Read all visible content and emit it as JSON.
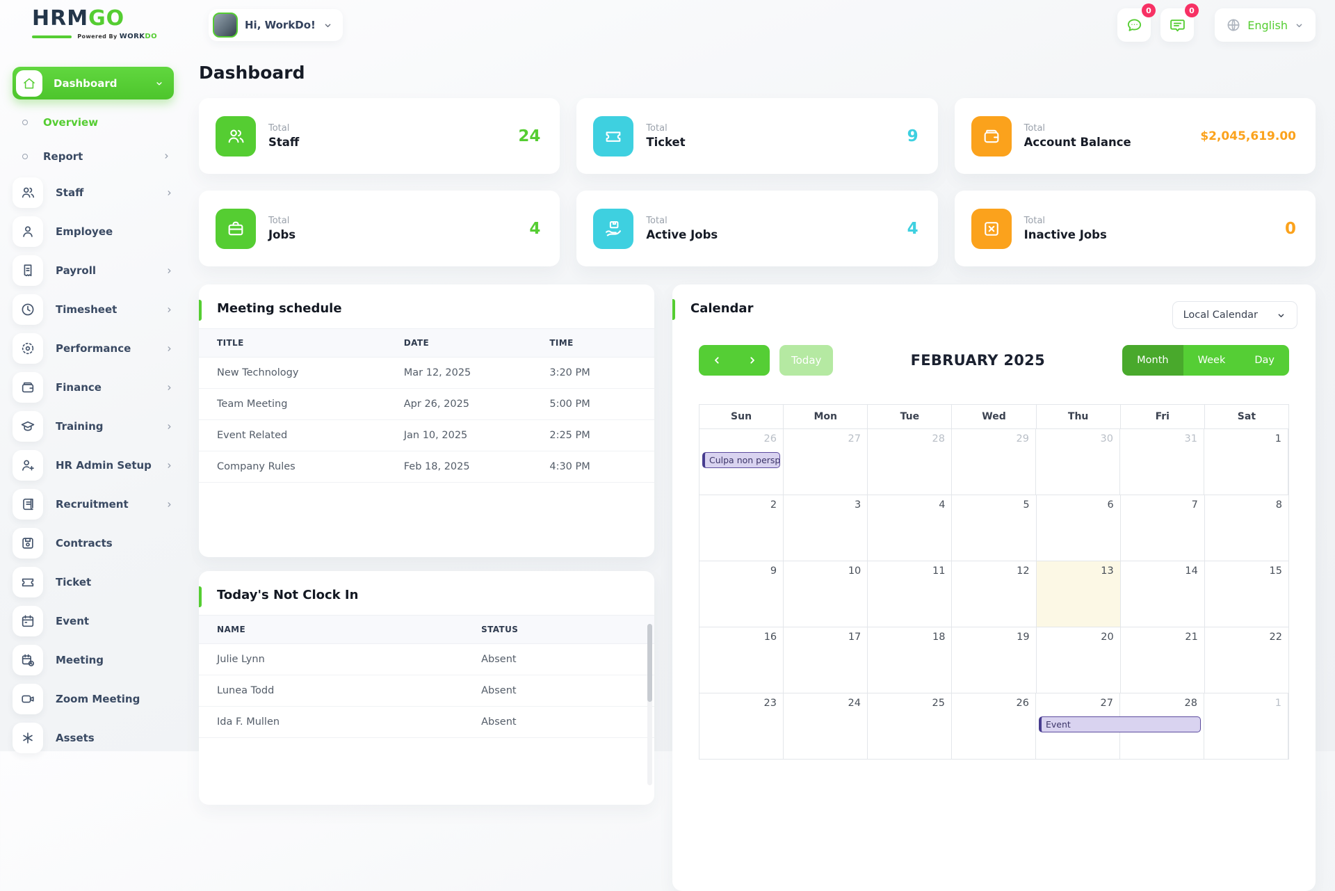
{
  "brand": {
    "name_primary": "HRM",
    "name_secondary": "GO",
    "tagline_prefix": "Powered By",
    "tagline_word1": "WORK",
    "tagline_word2": "DO"
  },
  "header": {
    "greeting": "Hi, WorkDo!",
    "messages_badge": "0",
    "notifications_badge": "0",
    "language": "English"
  },
  "sidebar": {
    "items": [
      {
        "label": "Dashboard",
        "icon": "home-icon",
        "active": true,
        "chevron": "down"
      },
      {
        "label": "Overview",
        "type": "sub",
        "active": true
      },
      {
        "label": "Report",
        "type": "sub",
        "chevron": "right"
      },
      {
        "label": "Staff",
        "icon": "users-icon",
        "chevron": "right"
      },
      {
        "label": "Employee",
        "icon": "user-icon"
      },
      {
        "label": "Payroll",
        "icon": "receipt-icon",
        "chevron": "right"
      },
      {
        "label": "Timesheet",
        "icon": "clock-icon",
        "chevron": "right"
      },
      {
        "label": "Performance",
        "icon": "target-icon",
        "chevron": "right"
      },
      {
        "label": "Finance",
        "icon": "wallet-icon",
        "chevron": "right"
      },
      {
        "label": "Training",
        "icon": "graduation-cap-icon",
        "chevron": "right"
      },
      {
        "label": "HR Admin Setup",
        "icon": "user-plus-icon",
        "chevron": "right"
      },
      {
        "label": "Recruitment",
        "icon": "scroll-icon",
        "chevron": "right"
      },
      {
        "label": "Contracts",
        "icon": "floppy-icon"
      },
      {
        "label": "Ticket",
        "icon": "ticket-icon"
      },
      {
        "label": "Event",
        "icon": "calendar-icon"
      },
      {
        "label": "Meeting",
        "icon": "calendar-clock-icon"
      },
      {
        "label": "Zoom Meeting",
        "icon": "video-camera-icon"
      },
      {
        "label": "Assets",
        "icon": "asterisk-icon"
      }
    ]
  },
  "page": {
    "title": "Dashboard"
  },
  "stat_cards": [
    {
      "label_top": "Total",
      "label": "Staff",
      "value": "24",
      "color": "#55cd32",
      "icon": "users-icon"
    },
    {
      "label_top": "Total",
      "label": "Ticket",
      "value": "9",
      "color": "#3ed0e0",
      "icon": "ticket-icon"
    },
    {
      "label_top": "Total",
      "label": "Account Balance",
      "value": "$2,045,619.00",
      "color": "#fba21c",
      "icon": "wallet-icon"
    },
    {
      "label_top": "Total",
      "label": "Jobs",
      "value": "4",
      "color": "#55cd32",
      "icon": "briefcase-icon"
    },
    {
      "label_top": "Total",
      "label": "Active Jobs",
      "value": "4",
      "color": "#3ed0e0",
      "icon": "hand-box-icon"
    },
    {
      "label_top": "Total",
      "label": "Inactive Jobs",
      "value": "0",
      "color": "#fba21c",
      "icon": "box-x-icon"
    }
  ],
  "meeting_schedule": {
    "title": "Meeting schedule",
    "headers": [
      "TITLE",
      "DATE",
      "TIME"
    ],
    "rows": [
      [
        "New Technology",
        "Mar 12, 2025",
        "3:20 PM"
      ],
      [
        "Team Meeting",
        "Apr 26, 2025",
        "5:00 PM"
      ],
      [
        "Event Related",
        "Jan 10, 2025",
        "2:25 PM"
      ],
      [
        "Company Rules",
        "Feb 18, 2025",
        "4:30 PM"
      ]
    ]
  },
  "not_clock_in": {
    "title": "Today's Not Clock In",
    "headers": [
      "NAME",
      "STATUS"
    ],
    "rows": [
      [
        "Julie Lynn",
        "Absent"
      ],
      [
        "Lunea Todd",
        "Absent"
      ],
      [
        "Ida F. Mullen",
        "Absent"
      ]
    ]
  },
  "calendar": {
    "title": "Calendar",
    "source": "Local Calendar",
    "toolbar": {
      "today": "Today",
      "month_title": "FEBRUARY 2025",
      "views": [
        "Month",
        "Week",
        "Day"
      ],
      "active_view": "Month"
    },
    "weekdays": [
      "Sun",
      "Mon",
      "Tue",
      "Wed",
      "Thu",
      "Fri",
      "Sat"
    ],
    "weeks": [
      {
        "days": [
          {
            "n": "26",
            "muted": true
          },
          {
            "n": "27",
            "muted": true
          },
          {
            "n": "28",
            "muted": true
          },
          {
            "n": "29",
            "muted": true
          },
          {
            "n": "30",
            "muted": true
          },
          {
            "n": "31",
            "muted": true
          },
          {
            "n": "1"
          }
        ],
        "events": [
          {
            "label": "Culpa non persp",
            "col": 0,
            "span": 1
          }
        ]
      },
      {
        "days": [
          {
            "n": "2"
          },
          {
            "n": "3"
          },
          {
            "n": "4"
          },
          {
            "n": "5"
          },
          {
            "n": "6"
          },
          {
            "n": "7"
          },
          {
            "n": "8"
          }
        ]
      },
      {
        "days": [
          {
            "n": "9"
          },
          {
            "n": "10"
          },
          {
            "n": "11"
          },
          {
            "n": "12"
          },
          {
            "n": "13",
            "today": true
          },
          {
            "n": "14"
          },
          {
            "n": "15"
          }
        ]
      },
      {
        "days": [
          {
            "n": "16"
          },
          {
            "n": "17"
          },
          {
            "n": "18"
          },
          {
            "n": "19"
          },
          {
            "n": "20"
          },
          {
            "n": "21"
          },
          {
            "n": "22"
          }
        ]
      },
      {
        "days": [
          {
            "n": "23"
          },
          {
            "n": "24"
          },
          {
            "n": "25"
          },
          {
            "n": "26"
          },
          {
            "n": "27"
          },
          {
            "n": "28"
          },
          {
            "n": "1",
            "muted": true
          }
        ],
        "events": [
          {
            "label": "Event",
            "col": 4,
            "span": 2
          }
        ]
      }
    ]
  }
}
